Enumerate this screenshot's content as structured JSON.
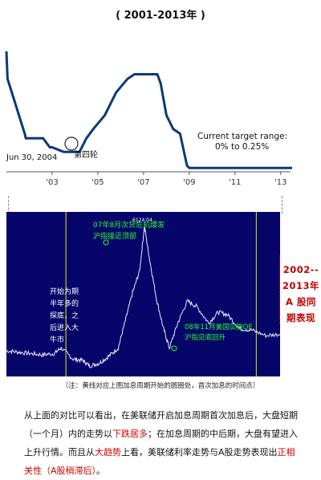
{
  "page_title": "( 2001-2013年 )",
  "chart_data": [
    {
      "type": "line",
      "title": "",
      "x_tick_labels": [
        "'03",
        "'05",
        "'07",
        "'09",
        "'11",
        "'13"
      ],
      "x_tick_years": [
        2003,
        2005,
        2007,
        2009,
        2011,
        2013
      ],
      "xlim": [
        2001.0,
        2013.5
      ],
      "ylim": [
        0,
        6.5
      ],
      "x": [
        2001.0,
        2001.05,
        2001.8,
        2001.85,
        2002.6,
        2002.9,
        2003.0,
        2003.5,
        2004.2,
        2004.5,
        2004.8,
        2005.3,
        2005.8,
        2006.3,
        2006.6,
        2007.6,
        2007.75,
        2008.0,
        2008.3,
        2008.6,
        2008.9,
        2009.0,
        2013.5
      ],
      "y": [
        6.5,
        5.0,
        2.0,
        1.75,
        1.75,
        1.25,
        1.25,
        1.0,
        1.0,
        1.75,
        2.25,
        3.0,
        4.25,
        5.0,
        5.25,
        5.25,
        4.75,
        3.0,
        2.25,
        2.0,
        0.25,
        0.125,
        0.125
      ],
      "annotations": {
        "start_label": "Jun 30, 2004",
        "cycle_label": "第四轮",
        "range_title": "Current target range:",
        "range_value": "0% to 0.25%"
      }
    },
    {
      "type": "line",
      "title": "",
      "xlim": [
        2002.0,
        2013.5
      ],
      "ylim": [
        900,
        6400
      ],
      "peak_label": "6124.04",
      "x": [
        2002.0,
        2002.5,
        2003.0,
        2003.5,
        2004.0,
        2004.3,
        2004.8,
        2005.2,
        2005.5,
        2005.9,
        2006.3,
        2006.7,
        2007.0,
        2007.3,
        2007.6,
        2007.8,
        2008.0,
        2008.3,
        2008.6,
        2008.85,
        2009.2,
        2009.6,
        2010.0,
        2010.5,
        2010.9,
        2011.3,
        2011.8,
        2012.3,
        2012.9,
        2013.5
      ],
      "y": [
        1600,
        1550,
        1500,
        1450,
        1500,
        1700,
        1300,
        1250,
        1050,
        1150,
        1400,
        1700,
        2700,
        3700,
        4500,
        6124,
        5000,
        3500,
        2400,
        1700,
        2600,
        3400,
        3200,
        2600,
        3000,
        2900,
        2400,
        2350,
        2150,
        2200
      ],
      "vertical_markers": [
        2004.5,
        2012.5
      ],
      "annotations": {
        "start_text": [
          "开始为期",
          "半年多的",
          "探底，之",
          "后进入大",
          "牛市"
        ],
        "peak_text": [
          "07年8月次贷危机爆发",
          "沪指接近顶部"
        ],
        "qe_text": [
          "08年11月美国实施QE",
          "沪指见底回升"
        ]
      }
    }
  ],
  "side_label": [
    "2002--",
    "2013年",
    "A 股同",
    "期表现"
  ],
  "note": "（注：黄线对应上图加息周期开始的圆圈处，首次加息的时间点）",
  "conclusion": {
    "p1": "从上面的对比可以看出，在美联储开启加息周期首次加息后，大盘短期（一个月）内的走势以",
    "h1": "下跌居多",
    "p2": "；在加息周期的中后期，大盘有望进入上升行情。而且从",
    "h2": "大趋势",
    "p3": "上看，美联储利率走势与A股走势表现出",
    "h3": "正相关性（A股稍滞后）",
    "p4": "。"
  },
  "colors": {
    "fed_line": "#0a3a78",
    "a_bg": "#06066a",
    "a_line": "#e8e8ff",
    "marker": "#e8e800",
    "annot": "#22ff22",
    "red": "#d10000"
  }
}
